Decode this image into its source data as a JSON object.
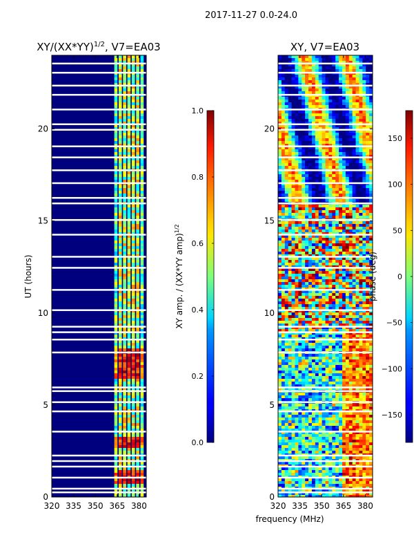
{
  "figure": {
    "suptitle": "2017-11-27 0.0-24.0",
    "xlabel": "frequency (MHz)"
  },
  "chart_data": [
    {
      "type": "heatmap",
      "title_main": "XY/(XX*YY)",
      "title_sup": "1/2",
      "title_suffix": ", V7=EA03",
      "ylabel": "UT (hours)",
      "xlim": [
        320,
        385
      ],
      "ylim": [
        0,
        24
      ],
      "x_ticks": [
        320,
        335,
        350,
        365,
        380
      ],
      "y_ticks": [
        0,
        5,
        10,
        15,
        20
      ],
      "colorbar": {
        "label_main": "XY amp. / (XX*YY amp)",
        "label_sup": "1/2",
        "range": [
          0,
          1
        ],
        "ticks": [
          "0.0",
          "0.2",
          "0.4",
          "0.6",
          "0.8",
          "1.0"
        ],
        "tick_values": [
          0,
          0.2,
          0.4,
          0.6,
          0.8,
          1.0
        ]
      }
    },
    {
      "type": "heatmap",
      "title_main": "XY, V7=EA03",
      "ylabel": "",
      "xlim": [
        320,
        385
      ],
      "ylim": [
        0,
        24
      ],
      "x_ticks": [
        320,
        335,
        350,
        365,
        380
      ],
      "y_ticks": [
        0,
        5,
        10,
        15,
        20
      ],
      "colorbar": {
        "label_main": "phase (deg)",
        "range": [
          -180,
          180
        ],
        "ticks": [
          "−150",
          "−100",
          "−50",
          "0",
          "50",
          "100",
          "150"
        ],
        "tick_values": [
          -150,
          -100,
          -50,
          0,
          50,
          100,
          150
        ]
      }
    }
  ]
}
